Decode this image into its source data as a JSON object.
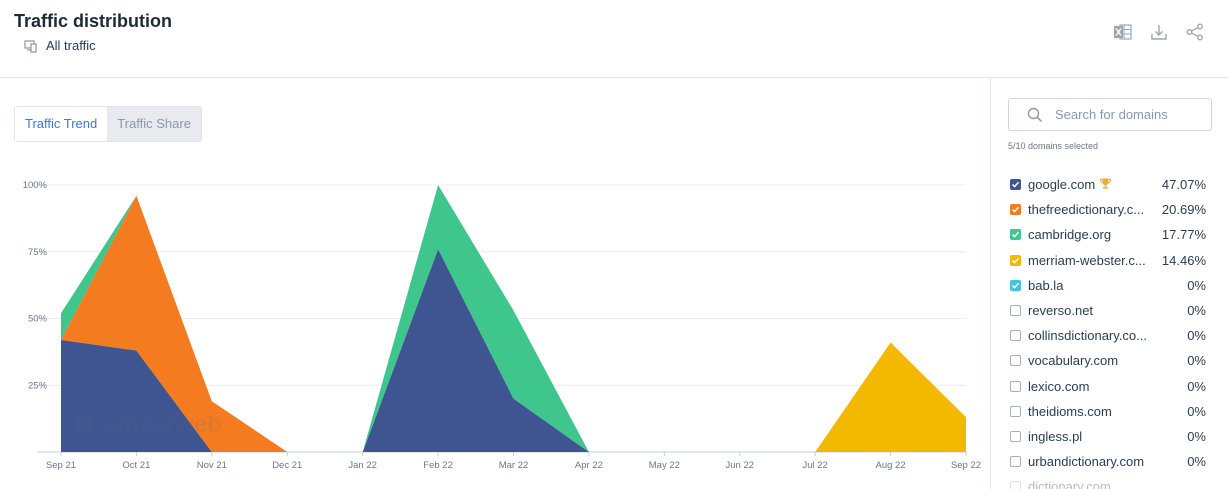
{
  "header": {
    "title": "Traffic distribution",
    "subtitle": "All traffic"
  },
  "tabs": [
    {
      "label": "Traffic Trend",
      "active": true
    },
    {
      "label": "Traffic Share",
      "active": false
    }
  ],
  "search": {
    "placeholder": "Search for domains"
  },
  "selected_count": "5/10 domains selected",
  "domains": [
    {
      "name": "google.com",
      "pct": "47.07%",
      "checked": true,
      "color": "#3f5591",
      "trophy": true
    },
    {
      "name": "thefreedictionary.c...",
      "pct": "20.69%",
      "checked": true,
      "color": "#f47b20"
    },
    {
      "name": "cambridge.org",
      "pct": "17.77%",
      "checked": true,
      "color": "#3ec68d"
    },
    {
      "name": "merriam-webster.c...",
      "pct": "14.46%",
      "checked": true,
      "color": "#f3b800"
    },
    {
      "name": "bab.la",
      "pct": "0%",
      "checked": true,
      "color": "#40c4e6"
    },
    {
      "name": "reverso.net",
      "pct": "0%",
      "checked": false
    },
    {
      "name": "collinsdictionary.co...",
      "pct": "0%",
      "checked": false
    },
    {
      "name": "vocabulary.com",
      "pct": "0%",
      "checked": false
    },
    {
      "name": "lexico.com",
      "pct": "0%",
      "checked": false
    },
    {
      "name": "theidioms.com",
      "pct": "0%",
      "checked": false
    },
    {
      "name": "ingless.pl",
      "pct": "0%",
      "checked": false
    },
    {
      "name": "urbandictionary.com",
      "pct": "0%",
      "checked": false
    },
    {
      "name": "dictionary.com",
      "pct": "",
      "checked": false,
      "faded": true
    }
  ],
  "chart_data": {
    "type": "area",
    "stacked": true,
    "x": [
      "Sep 21",
      "Oct 21",
      "Nov 21",
      "Dec 21",
      "Jan 22",
      "Feb 22",
      "Mar 22",
      "Apr 22",
      "May 22",
      "Jun 22",
      "Jul 22",
      "Aug 22",
      "Sep 22"
    ],
    "y_ticks": [
      "100%",
      "75%",
      "50%",
      "25%"
    ],
    "ylim": [
      0,
      100
    ],
    "grid": true,
    "watermark": "similarweb",
    "series": [
      {
        "name": "google.com",
        "color": "#3f5591",
        "values": [
          42,
          38,
          0,
          0,
          0,
          76,
          20,
          0,
          0,
          0,
          0,
          0,
          0
        ]
      },
      {
        "name": "thefreedictionary.c...",
        "color": "#f47b20",
        "values": [
          0,
          58,
          19,
          0,
          0,
          0,
          0,
          0,
          0,
          0,
          0,
          0,
          0
        ]
      },
      {
        "name": "cambridge.org",
        "color": "#3ec68d",
        "values": [
          10,
          0,
          0,
          0,
          0,
          24,
          33,
          0,
          0,
          0,
          0,
          0,
          0
        ]
      },
      {
        "name": "merriam-webster.c...",
        "color": "#f3b800",
        "values": [
          0,
          0,
          0,
          0,
          0,
          0,
          0,
          0,
          0,
          0,
          0,
          41,
          13
        ]
      }
    ]
  }
}
